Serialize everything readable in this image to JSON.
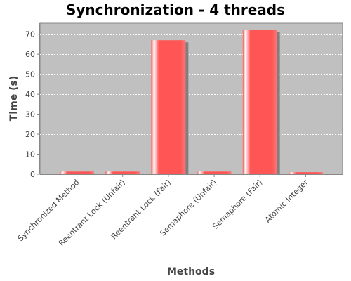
{
  "chart_data": {
    "type": "bar",
    "title": "Synchronization - 4 threads",
    "xlabel": "Methods",
    "ylabel": "Time (s)",
    "categories": [
      "Synchronized Method",
      "Reentrant Lock (Unfair)",
      "Reentrant Lock (Fair)",
      "Semaphore (Unfair)",
      "Semaphore (Fair)",
      "Atomic Integer"
    ],
    "values": [
      1.3,
      1.3,
      67,
      1.3,
      72,
      1.0
    ],
    "ylim": [
      0,
      75.5
    ],
    "yticks": [
      0,
      10,
      20,
      30,
      40,
      50,
      60,
      70
    ],
    "grid": true,
    "legend": "none",
    "colors": {
      "bar": "#ff5555",
      "bar_highlight": "#ffffff",
      "bar_shadow": "#7f7f7f",
      "plot_background": "#c0c0c0",
      "grid": "#ffffff"
    }
  }
}
